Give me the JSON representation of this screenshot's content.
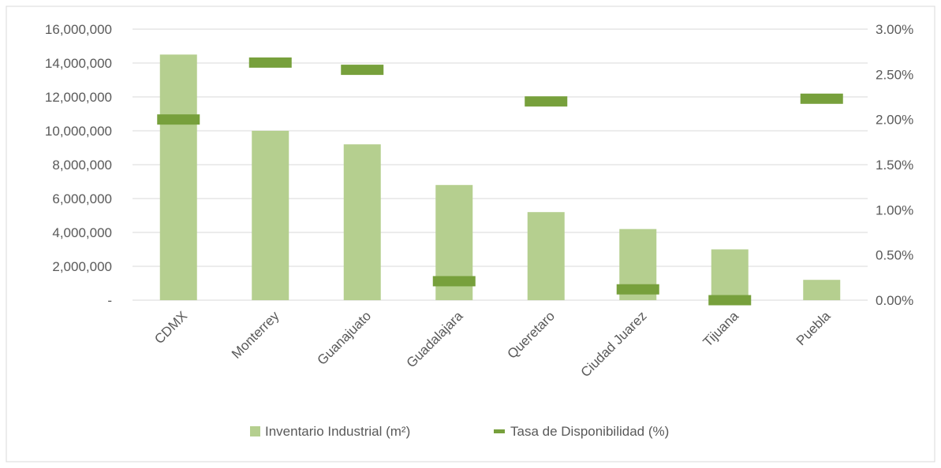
{
  "chart_data": {
    "type": "bar",
    "categories": [
      "CDMX",
      "Monterrey",
      "Guanajuato",
      "Guadalajara",
      "Queretaro",
      "Ciudad Juarez",
      "Tijuana",
      "Puebla"
    ],
    "series": [
      {
        "name": "Inventario Industrial (m²)",
        "type": "bar",
        "axis": "left",
        "color": "#b5cf8f",
        "values": [
          14500000,
          10000000,
          9200000,
          6800000,
          5200000,
          4200000,
          3000000,
          1200000
        ]
      },
      {
        "name": "Tasa de Disponibilidad (%)",
        "type": "marker",
        "axis": "right",
        "color": "#77a03c",
        "values": [
          2.0,
          2.63,
          2.55,
          0.21,
          2.2,
          0.12,
          0.0,
          2.23
        ]
      }
    ],
    "y_left": {
      "min": 0,
      "max": 16000000,
      "ticks": [
        0,
        2000000,
        4000000,
        6000000,
        8000000,
        10000000,
        12000000,
        14000000,
        16000000
      ],
      "tick_labels": [
        "-",
        "2,000,000",
        "4,000,000",
        "6,000,000",
        "8,000,000",
        "10,000,000",
        "12,000,000",
        "14,000,000",
        "16,000,000"
      ]
    },
    "y_right": {
      "min": 0,
      "max": 3.0,
      "ticks": [
        0,
        0.5,
        1.0,
        1.5,
        2.0,
        2.5,
        3.0
      ],
      "tick_labels": [
        "0.00%",
        "0.50%",
        "1.00%",
        "1.50%",
        "2.00%",
        "2.50%",
        "3.00%"
      ]
    },
    "grid": true,
    "legend_position": "bottom"
  }
}
